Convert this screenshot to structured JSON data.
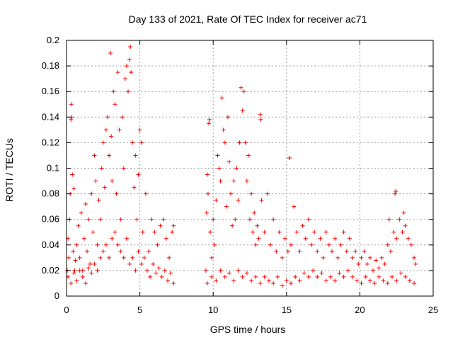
{
  "chart_data": {
    "type": "scatter",
    "title": "Day 133 of 2021, Rate Of TEC Index for receiver ac71",
    "xlabel": "GPS time / hours",
    "ylabel": "ROTI / TECUs",
    "xlim": [
      0,
      25
    ],
    "ylim": [
      0,
      0.2
    ],
    "xticks": [
      0,
      5,
      10,
      15,
      20,
      25
    ],
    "xtick_labels": [
      "0",
      "5",
      "10",
      "15",
      "20",
      "25"
    ],
    "yticks": [
      0,
      0.02,
      0.04,
      0.06,
      0.08,
      0.1,
      0.12,
      0.14,
      0.16,
      0.18,
      0.2
    ],
    "ytick_labels": [
      "0",
      "0.02",
      "0.04",
      "0.06",
      "0.08",
      "0.1",
      "0.12",
      "0.14",
      "0.16",
      "0.18",
      "0.2"
    ],
    "grid": true,
    "marker": "plus",
    "color": "#ff0000",
    "series": [
      {
        "values": [
          [
            0.05,
            0.02
          ],
          [
            0.1,
            0.045
          ],
          [
            0.15,
            0.03
          ],
          [
            0.2,
            0.06
          ],
          [
            0.25,
            0.08
          ],
          [
            0.3,
            0.138
          ],
          [
            0.32,
            0.15
          ],
          [
            0.35,
            0.14
          ],
          [
            0.4,
            0.095
          ],
          [
            0.45,
            0.035
          ],
          [
            0.5,
            0.084
          ],
          [
            0.55,
            0.02
          ],
          [
            0.6,
            0.028
          ],
          [
            0.7,
            0.04
          ],
          [
            0.8,
            0.055
          ],
          [
            0.9,
            0.03
          ],
          [
            1.0,
            0.065
          ],
          [
            1.1,
            0.02
          ],
          [
            1.2,
            0.045
          ],
          [
            1.3,
            0.072
          ],
          [
            1.4,
            0.035
          ],
          [
            1.5,
            0.06
          ],
          [
            1.6,
            0.025
          ],
          [
            1.7,
            0.08
          ],
          [
            1.8,
            0.05
          ],
          [
            1.9,
            0.11
          ],
          [
            2.0,
            0.09
          ],
          [
            2.1,
            0.04
          ],
          [
            2.2,
            0.075
          ],
          [
            2.3,
            0.06
          ],
          [
            2.4,
            0.1
          ],
          [
            2.5,
            0.12
          ],
          [
            2.6,
            0.085
          ],
          [
            2.7,
            0.13
          ],
          [
            2.8,
            0.14
          ],
          [
            2.9,
            0.11
          ],
          [
            3.0,
            0.19
          ],
          [
            3.05,
            0.125
          ],
          [
            3.1,
            0.09
          ],
          [
            3.2,
            0.16
          ],
          [
            3.3,
            0.15
          ],
          [
            3.4,
            0.08
          ],
          [
            3.5,
            0.175
          ],
          [
            3.6,
            0.13
          ],
          [
            3.7,
            0.06
          ],
          [
            3.8,
            0.14
          ],
          [
            3.9,
            0.1
          ],
          [
            4.0,
            0.17
          ],
          [
            4.1,
            0.18
          ],
          [
            4.2,
            0.16
          ],
          [
            4.3,
            0.185
          ],
          [
            4.35,
            0.195
          ],
          [
            4.4,
            0.175
          ],
          [
            4.5,
            0.12
          ],
          [
            4.6,
            0.085
          ],
          [
            4.7,
            0.11
          ],
          [
            4.8,
            0.06
          ],
          [
            4.9,
            0.095
          ],
          [
            5.0,
            0.13
          ],
          [
            5.1,
            0.12
          ],
          [
            5.2,
            0.05
          ],
          [
            5.4,
            0.08
          ],
          [
            5.6,
            0.035
          ],
          [
            5.8,
            0.06
          ],
          [
            6.0,
            0.05
          ],
          [
            6.2,
            0.04
          ],
          [
            6.4,
            0.055
          ],
          [
            6.6,
            0.06
          ],
          [
            6.8,
            0.045
          ],
          [
            7.0,
            0.03
          ],
          [
            7.2,
            0.05
          ],
          [
            7.3,
            0.055
          ],
          [
            0.1,
            0.015
          ],
          [
            0.3,
            0.01
          ],
          [
            0.5,
            0.018
          ],
          [
            0.7,
            0.012
          ],
          [
            0.9,
            0.02
          ],
          [
            1.1,
            0.015
          ],
          [
            1.3,
            0.01
          ],
          [
            1.5,
            0.022
          ],
          [
            1.7,
            0.018
          ],
          [
            1.9,
            0.025
          ],
          [
            2.1,
            0.02
          ],
          [
            2.3,
            0.03
          ],
          [
            2.5,
            0.035
          ],
          [
            2.7,
            0.04
          ],
          [
            2.9,
            0.03
          ],
          [
            3.1,
            0.045
          ],
          [
            3.3,
            0.05
          ],
          [
            3.5,
            0.04
          ],
          [
            3.7,
            0.035
          ],
          [
            3.9,
            0.03
          ],
          [
            4.1,
            0.045
          ],
          [
            4.3,
            0.025
          ],
          [
            4.5,
            0.03
          ],
          [
            4.7,
            0.02
          ],
          [
            4.9,
            0.035
          ],
          [
            5.1,
            0.025
          ],
          [
            5.3,
            0.03
          ],
          [
            5.5,
            0.02
          ],
          [
            5.7,
            0.015
          ],
          [
            5.9,
            0.025
          ],
          [
            6.1,
            0.018
          ],
          [
            6.3,
            0.022
          ],
          [
            6.5,
            0.015
          ],
          [
            6.7,
            0.02
          ],
          [
            6.9,
            0.012
          ],
          [
            7.1,
            0.018
          ],
          [
            7.3,
            0.01
          ],
          [
            9.5,
            0.02
          ],
          [
            9.55,
            0.065
          ],
          [
            9.6,
            0.095
          ],
          [
            9.65,
            0.08
          ],
          [
            9.7,
            0.135
          ],
          [
            9.75,
            0.138
          ],
          [
            9.8,
            0.05
          ],
          [
            9.9,
            0.03
          ],
          [
            10.0,
            0.06
          ],
          [
            10.1,
            0.04
          ],
          [
            10.2,
            0.075
          ],
          [
            10.3,
            0.11
          ],
          [
            10.4,
            0.1
          ],
          [
            10.5,
            0.09
          ],
          [
            10.6,
            0.155
          ],
          [
            10.7,
            0.13
          ],
          [
            10.8,
            0.12
          ],
          [
            10.9,
            0.07
          ],
          [
            11.0,
            0.14
          ],
          [
            11.1,
            0.105
          ],
          [
            11.2,
            0.08
          ],
          [
            11.3,
            0.055
          ],
          [
            11.4,
            0.09
          ],
          [
            11.5,
            0.06
          ],
          [
            11.6,
            0.1
          ],
          [
            11.7,
            0.075
          ],
          [
            11.8,
            0.12
          ],
          [
            11.9,
            0.163
          ],
          [
            12.0,
            0.145
          ],
          [
            12.1,
            0.16
          ],
          [
            12.2,
            0.12
          ],
          [
            12.3,
            0.09
          ],
          [
            12.4,
            0.11
          ],
          [
            12.5,
            0.06
          ],
          [
            12.6,
            0.08
          ],
          [
            12.7,
            0.05
          ],
          [
            12.8,
            0.065
          ],
          [
            12.9,
            0.04
          ],
          [
            13.0,
            0.055
          ],
          [
            13.1,
            0.045
          ],
          [
            13.2,
            0.142
          ],
          [
            13.25,
            0.138
          ],
          [
            13.3,
            0.075
          ],
          [
            13.5,
            0.05
          ],
          [
            13.7,
            0.08
          ],
          [
            13.9,
            0.04
          ],
          [
            14.1,
            0.06
          ],
          [
            14.3,
            0.035
          ],
          [
            14.5,
            0.05
          ],
          [
            14.7,
            0.03
          ],
          [
            14.9,
            0.045
          ],
          [
            15.1,
            0.035
          ],
          [
            15.2,
            0.108
          ],
          [
            15.3,
            0.04
          ],
          [
            15.5,
            0.07
          ],
          [
            15.7,
            0.05
          ],
          [
            15.9,
            0.035
          ],
          [
            16.1,
            0.055
          ],
          [
            16.3,
            0.045
          ],
          [
            16.5,
            0.06
          ],
          [
            16.7,
            0.04
          ],
          [
            16.9,
            0.05
          ],
          [
            17.1,
            0.035
          ],
          [
            17.3,
            0.045
          ],
          [
            17.5,
            0.03
          ],
          [
            17.7,
            0.05
          ],
          [
            17.9,
            0.04
          ],
          [
            18.1,
            0.035
          ],
          [
            18.3,
            0.045
          ],
          [
            18.5,
            0.03
          ],
          [
            18.7,
            0.04
          ],
          [
            18.9,
            0.05
          ],
          [
            19.1,
            0.035
          ],
          [
            19.3,
            0.045
          ],
          [
            19.5,
            0.03
          ],
          [
            19.7,
            0.035
          ],
          [
            19.9,
            0.025
          ],
          [
            20.1,
            0.03
          ],
          [
            20.3,
            0.035
          ],
          [
            20.5,
            0.025
          ],
          [
            20.7,
            0.03
          ],
          [
            20.9,
            0.02
          ],
          [
            21.1,
            0.028
          ],
          [
            21.3,
            0.022
          ],
          [
            21.5,
            0.03
          ],
          [
            21.7,
            0.025
          ],
          [
            21.9,
            0.04
          ],
          [
            22.0,
            0.06
          ],
          [
            22.1,
            0.035
          ],
          [
            22.3,
            0.05
          ],
          [
            22.4,
            0.08
          ],
          [
            22.45,
            0.082
          ],
          [
            22.5,
            0.045
          ],
          [
            22.7,
            0.06
          ],
          [
            22.9,
            0.05
          ],
          [
            23.0,
            0.065
          ],
          [
            23.1,
            0.055
          ],
          [
            23.3,
            0.045
          ],
          [
            23.5,
            0.04
          ],
          [
            23.7,
            0.03
          ],
          [
            23.8,
            0.025
          ],
          [
            9.6,
            0.01
          ],
          [
            9.9,
            0.015
          ],
          [
            10.2,
            0.012
          ],
          [
            10.5,
            0.02
          ],
          [
            10.8,
            0.015
          ],
          [
            11.1,
            0.018
          ],
          [
            11.4,
            0.012
          ],
          [
            11.7,
            0.02
          ],
          [
            12.0,
            0.015
          ],
          [
            12.3,
            0.018
          ],
          [
            12.6,
            0.012
          ],
          [
            12.9,
            0.015
          ],
          [
            13.2,
            0.01
          ],
          [
            13.5,
            0.015
          ],
          [
            13.8,
            0.012
          ],
          [
            14.1,
            0.01
          ],
          [
            14.4,
            0.015
          ],
          [
            14.7,
            0.008
          ],
          [
            15.0,
            0.012
          ],
          [
            15.3,
            0.01
          ],
          [
            15.6,
            0.015
          ],
          [
            15.9,
            0.012
          ],
          [
            16.2,
            0.018
          ],
          [
            16.5,
            0.015
          ],
          [
            16.8,
            0.02
          ],
          [
            17.1,
            0.015
          ],
          [
            17.4,
            0.018
          ],
          [
            17.7,
            0.012
          ],
          [
            18.0,
            0.015
          ],
          [
            18.3,
            0.012
          ],
          [
            18.6,
            0.018
          ],
          [
            18.9,
            0.015
          ],
          [
            19.2,
            0.02
          ],
          [
            19.5,
            0.015
          ],
          [
            19.8,
            0.012
          ],
          [
            20.1,
            0.01
          ],
          [
            20.4,
            0.015
          ],
          [
            20.7,
            0.012
          ],
          [
            21.0,
            0.01
          ],
          [
            21.3,
            0.015
          ],
          [
            21.6,
            0.012
          ],
          [
            21.9,
            0.01
          ],
          [
            22.2,
            0.015
          ],
          [
            22.5,
            0.012
          ],
          [
            22.8,
            0.018
          ],
          [
            23.1,
            0.015
          ],
          [
            23.4,
            0.012
          ],
          [
            23.7,
            0.01
          ]
        ]
      }
    ]
  }
}
